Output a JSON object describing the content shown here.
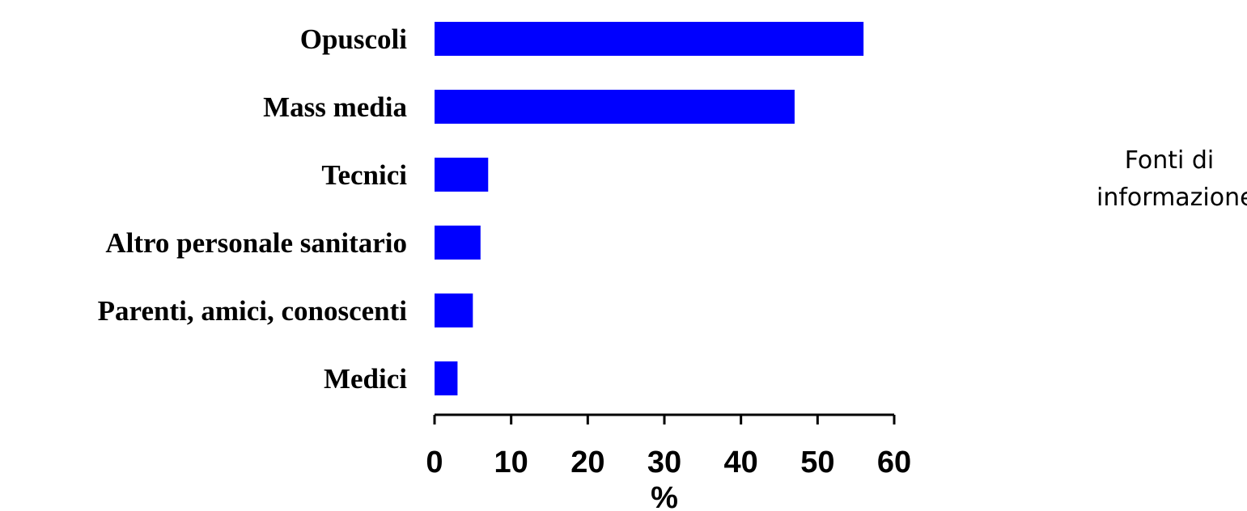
{
  "chart_data": {
    "type": "bar",
    "orientation": "horizontal",
    "categories": [
      "Opuscoli",
      "Mass media",
      "Tecnici",
      "Altro personale sanitario",
      "Parenti, amici, conoscenti",
      "Medici"
    ],
    "values": [
      56,
      47,
      7,
      6,
      5,
      3
    ],
    "xlabel": "%",
    "xlim": [
      0,
      60
    ],
    "xticks": [
      "0",
      "10",
      "20",
      "30",
      "40",
      "50",
      "60"
    ],
    "grid": false,
    "bar_color": "#0000ff"
  },
  "side_note": {
    "line1": "Fonti di",
    "line2": "informazione"
  }
}
